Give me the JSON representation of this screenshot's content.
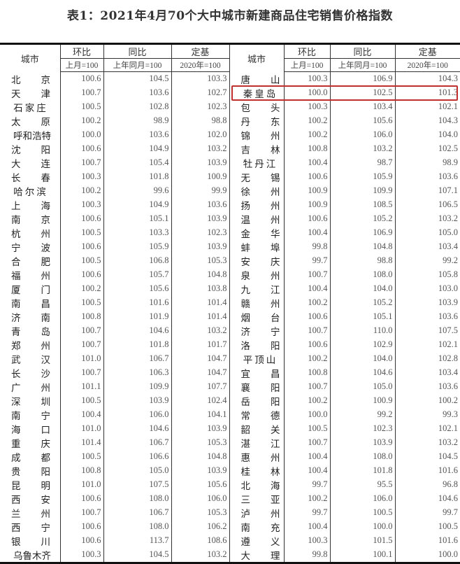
{
  "title": "表1：2021年4月70个大中城市新建商品住宅销售价格指数",
  "headers": {
    "city": "城市",
    "mom": "环比",
    "yoy": "同比",
    "base": "定基",
    "mom_sub": "上月=100",
    "yoy_sub": "上年同月=100",
    "base_sub": "2020年=100"
  },
  "highlighted_city": "秦皇岛",
  "highlight_color": "#c0302e",
  "rows": [
    [
      [
        "北京",
        "100.6",
        "104.5",
        "103.3"
      ],
      [
        "唐山",
        "100.3",
        "106.9",
        "104.3"
      ]
    ],
    [
      [
        "天津",
        "100.7",
        "103.6",
        "102.7"
      ],
      [
        "秦皇岛",
        "100.0",
        "102.5",
        "101.3"
      ]
    ],
    [
      [
        "石家庄",
        "100.5",
        "102.8",
        "102.3"
      ],
      [
        "包头",
        "100.3",
        "103.4",
        "102.1"
      ]
    ],
    [
      [
        "太原",
        "100.2",
        "98.9",
        "98.8"
      ],
      [
        "丹东",
        "100.2",
        "105.6",
        "104.3"
      ]
    ],
    [
      [
        "呼和浩特",
        "100.0",
        "103.6",
        "102.0"
      ],
      [
        "锦州",
        "100.2",
        "106.0",
        "104.0"
      ]
    ],
    [
      [
        "沈阳",
        "100.6",
        "104.9",
        "103.2"
      ],
      [
        "吉林",
        "100.8",
        "103.2",
        "102.5"
      ]
    ],
    [
      [
        "大连",
        "100.7",
        "105.4",
        "103.9"
      ],
      [
        "牡丹江",
        "100.4",
        "98.7",
        "98.9"
      ]
    ],
    [
      [
        "长春",
        "100.3",
        "101.8",
        "100.9"
      ],
      [
        "无锡",
        "100.6",
        "105.9",
        "103.6"
      ]
    ],
    [
      [
        "哈尔滨",
        "100.2",
        "99.6",
        "99.9"
      ],
      [
        "徐州",
        "100.9",
        "109.9",
        "107.1"
      ]
    ],
    [
      [
        "上海",
        "100.3",
        "104.9",
        "103.6"
      ],
      [
        "扬州",
        "100.9",
        "108.5",
        "106.5"
      ]
    ],
    [
      [
        "南京",
        "100.6",
        "105.1",
        "103.9"
      ],
      [
        "温州",
        "100.6",
        "105.2",
        "103.2"
      ]
    ],
    [
      [
        "杭州",
        "100.5",
        "103.3",
        "102.3"
      ],
      [
        "金华",
        "100.4",
        "106.9",
        "105.0"
      ]
    ],
    [
      [
        "宁波",
        "100.6",
        "105.9",
        "103.9"
      ],
      [
        "蚌埠",
        "99.8",
        "104.8",
        "103.4"
      ]
    ],
    [
      [
        "合肥",
        "100.5",
        "106.8",
        "105.3"
      ],
      [
        "安庆",
        "99.7",
        "98.8",
        "99.2"
      ]
    ],
    [
      [
        "福州",
        "100.6",
        "105.7",
        "104.8"
      ],
      [
        "泉州",
        "100.7",
        "108.0",
        "105.8"
      ]
    ],
    [
      [
        "厦门",
        "100.2",
        "105.6",
        "103.8"
      ],
      [
        "九江",
        "100.4",
        "104.0",
        "103.0"
      ]
    ],
    [
      [
        "南昌",
        "100.5",
        "101.6",
        "101.4"
      ],
      [
        "赣州",
        "100.2",
        "105.2",
        "103.9"
      ]
    ],
    [
      [
        "济南",
        "100.8",
        "101.9",
        "101.4"
      ],
      [
        "烟台",
        "100.6",
        "105.1",
        "103.6"
      ]
    ],
    [
      [
        "青岛",
        "100.7",
        "104.6",
        "103.2"
      ],
      [
        "济宁",
        "100.7",
        "110.0",
        "107.5"
      ]
    ],
    [
      [
        "郑州",
        "100.7",
        "101.8",
        "101.7"
      ],
      [
        "洛阳",
        "100.6",
        "102.9",
        "102.1"
      ]
    ],
    [
      [
        "武汉",
        "101.0",
        "106.7",
        "104.7"
      ],
      [
        "平顶山",
        "100.2",
        "104.0",
        "102.8"
      ]
    ],
    [
      [
        "长沙",
        "100.7",
        "106.3",
        "104.7"
      ],
      [
        "宜昌",
        "100.8",
        "104.6",
        "103.4"
      ]
    ],
    [
      [
        "广州",
        "101.1",
        "109.9",
        "107.7"
      ],
      [
        "襄阳",
        "100.7",
        "105.0",
        "103.6"
      ]
    ],
    [
      [
        "深圳",
        "100.5",
        "103.9",
        "102.4"
      ],
      [
        "岳阳",
        "100.2",
        "100.9",
        "100.2"
      ]
    ],
    [
      [
        "南宁",
        "100.4",
        "106.0",
        "104.1"
      ],
      [
        "常德",
        "100.0",
        "99.2",
        "99.3"
      ]
    ],
    [
      [
        "海口",
        "101.0",
        "104.6",
        "103.9"
      ],
      [
        "韶关",
        "100.5",
        "102.3",
        "102.1"
      ]
    ],
    [
      [
        "重庆",
        "101.4",
        "106.7",
        "105.3"
      ],
      [
        "湛江",
        "100.7",
        "103.9",
        "103.2"
      ]
    ],
    [
      [
        "成都",
        "100.5",
        "106.6",
        "104.8"
      ],
      [
        "惠州",
        "100.4",
        "108.0",
        "104.5"
      ]
    ],
    [
      [
        "贵阳",
        "100.8",
        "105.0",
        "103.9"
      ],
      [
        "桂林",
        "100.4",
        "101.8",
        "101.6"
      ]
    ],
    [
      [
        "昆明",
        "101.0",
        "107.5",
        "105.6"
      ],
      [
        "北海",
        "99.7",
        "95.5",
        "96.8"
      ]
    ],
    [
      [
        "西安",
        "100.6",
        "108.0",
        "106.0"
      ],
      [
        "三亚",
        "100.2",
        "106.0",
        "104.6"
      ]
    ],
    [
      [
        "兰州",
        "100.7",
        "106.7",
        "105.3"
      ],
      [
        "泸州",
        "99.7",
        "100.5",
        "99.7"
      ]
    ],
    [
      [
        "西宁",
        "100.6",
        "108.0",
        "106.2"
      ],
      [
        "南充",
        "100.4",
        "100.0",
        "100.5"
      ]
    ],
    [
      [
        "银川",
        "100.6",
        "113.7",
        "108.6"
      ],
      [
        "遵义",
        "100.3",
        "101.5",
        "101.6"
      ]
    ],
    [
      [
        "乌鲁木齐",
        "100.3",
        "104.5",
        "103.2"
      ],
      [
        "大理",
        "99.8",
        "100.1",
        "100.0"
      ]
    ]
  ]
}
